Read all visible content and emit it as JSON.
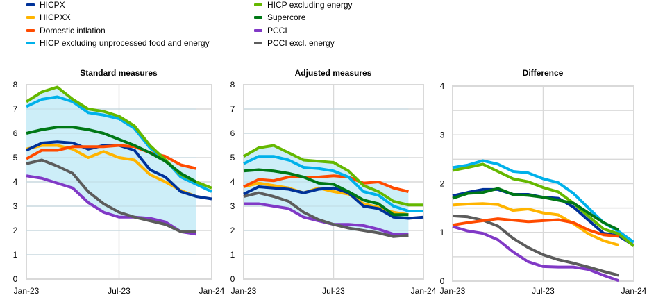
{
  "legend": {
    "left": [
      {
        "key": "hicpx",
        "label": "HICPX"
      },
      {
        "key": "hicpxx",
        "label": "HICPXX"
      },
      {
        "key": "domestic",
        "label": "Domestic inflation"
      },
      {
        "key": "excl_unproc",
        "label": "HICP excluding unprocessed food and energy"
      }
    ],
    "right": [
      {
        "key": "excl_energy",
        "label": "HICP excluding energy"
      },
      {
        "key": "supercore",
        "label": "Supercore"
      },
      {
        "key": "pcci",
        "label": "PCCI"
      },
      {
        "key": "pcci_excl_energy",
        "label": "PCCI excl. energy"
      }
    ]
  },
  "colors": {
    "hicpx": "#003299",
    "hicpxx": "#FFB400",
    "domestic": "#FF4B00",
    "excl_unproc": "#00B1EA",
    "excl_energy": "#65B800",
    "supercore": "#007816",
    "pcci": "#8139C6",
    "pcci_excl_energy": "#5C5C5C",
    "range_fill": "#CDEEF8",
    "grid": "#D9D9D9"
  },
  "chart_data": [
    {
      "type": "line",
      "title": "Standard measures",
      "xlabel": "",
      "ylabel": "",
      "x_ticks": [
        "Jan-23",
        "Jul-23",
        "Jan-24"
      ],
      "x": [
        "Jan-23",
        "Feb-23",
        "Mar-23",
        "Apr-23",
        "May-23",
        "Jun-23",
        "Jul-23",
        "Aug-23",
        "Sep-23",
        "Oct-23",
        "Nov-23",
        "Dec-23",
        "Jan-24"
      ],
      "ylim": [
        0,
        8
      ],
      "y_ticks": [
        0,
        1,
        2,
        3,
        4,
        5,
        6,
        7,
        8
      ],
      "grid": true,
      "shaded_range": "min-max across measures, Jan-23 to Dec-23",
      "series": [
        {
          "key": "excl_energy",
          "name": "HICP excluding energy",
          "values": [
            7.3,
            7.7,
            7.9,
            7.4,
            7.0,
            6.9,
            6.7,
            6.3,
            5.5,
            4.9,
            4.3,
            4.0,
            3.75
          ]
        },
        {
          "key": "excl_unproc",
          "name": "HICP excluding unprocessed food and energy",
          "values": [
            7.1,
            7.4,
            7.5,
            7.3,
            6.85,
            6.75,
            6.6,
            6.2,
            5.4,
            4.9,
            4.2,
            3.9,
            3.6
          ]
        },
        {
          "key": "supercore",
          "name": "Supercore",
          "values": [
            6.0,
            6.15,
            6.25,
            6.25,
            6.15,
            6.0,
            5.75,
            5.5,
            5.2,
            4.85,
            4.35,
            4.0
          ]
        },
        {
          "key": "hicpx",
          "name": "HICPX",
          "values": [
            5.3,
            5.6,
            5.65,
            5.6,
            5.35,
            5.5,
            5.5,
            5.3,
            4.5,
            4.2,
            3.6,
            3.4,
            3.3
          ]
        },
        {
          "key": "hicpxx",
          "name": "HICPXX",
          "values": [
            5.35,
            5.5,
            5.5,
            5.35,
            5.0,
            5.25,
            5.0,
            4.9,
            4.3,
            4.0,
            3.65,
            3.4
          ]
        },
        {
          "key": "domestic",
          "name": "Domestic inflation",
          "values": [
            4.95,
            5.3,
            5.3,
            5.45,
            5.45,
            5.45,
            5.5,
            5.45,
            5.2,
            5.05,
            4.7,
            4.55
          ]
        },
        {
          "key": "pcci_excl_energy",
          "name": "PCCI excl. energy",
          "values": [
            4.75,
            4.9,
            4.65,
            4.35,
            3.6,
            3.1,
            2.75,
            2.55,
            2.4,
            2.25,
            1.95,
            1.95
          ]
        },
        {
          "key": "pcci",
          "name": "PCCI",
          "values": [
            4.25,
            4.15,
            3.95,
            3.75,
            3.15,
            2.75,
            2.55,
            2.55,
            2.5,
            2.35,
            1.95,
            1.85
          ]
        }
      ]
    },
    {
      "type": "line",
      "title": "Adjusted measures",
      "xlabel": "",
      "ylabel": "",
      "x_ticks": [
        "Jan-23",
        "Jul-23",
        "Jan-24"
      ],
      "x": [
        "Jan-23",
        "Feb-23",
        "Mar-23",
        "Apr-23",
        "May-23",
        "Jun-23",
        "Jul-23",
        "Aug-23",
        "Sep-23",
        "Oct-23",
        "Nov-23",
        "Dec-23",
        "Jan-24"
      ],
      "ylim": [
        0,
        8
      ],
      "y_ticks": [
        0,
        1,
        2,
        3,
        4,
        5,
        6,
        7,
        8
      ],
      "grid": true,
      "shaded_range": "min-max across measures, Jan-23 to Dec-23",
      "series": [
        {
          "key": "excl_energy",
          "name": "HICP excluding energy",
          "values": [
            5.05,
            5.4,
            5.5,
            5.2,
            4.9,
            4.85,
            4.8,
            4.45,
            3.85,
            3.6,
            3.2,
            3.05,
            3.05
          ]
        },
        {
          "key": "excl_unproc",
          "name": "HICP excluding unprocessed food and energy",
          "values": [
            4.75,
            5.05,
            5.05,
            4.9,
            4.6,
            4.55,
            4.45,
            4.2,
            3.6,
            3.45,
            3.0,
            2.8,
            2.8
          ]
        },
        {
          "key": "supercore",
          "name": "Supercore",
          "values": [
            4.45,
            4.5,
            4.45,
            4.35,
            4.2,
            3.95,
            3.9,
            3.6,
            3.25,
            3.1,
            2.65,
            2.65
          ]
        },
        {
          "key": "hicpx",
          "name": "HICPX",
          "values": [
            3.5,
            3.8,
            3.75,
            3.7,
            3.55,
            3.7,
            3.75,
            3.55,
            3.0,
            2.9,
            2.55,
            2.5,
            2.55
          ]
        },
        {
          "key": "hicpxx",
          "name": "HICPXX",
          "values": [
            3.8,
            3.95,
            3.85,
            3.75,
            3.55,
            3.75,
            3.6,
            3.5,
            3.1,
            2.95,
            2.75,
            2.65
          ]
        },
        {
          "key": "domestic",
          "name": "Domestic inflation",
          "values": [
            3.8,
            4.1,
            4.05,
            4.2,
            4.2,
            4.2,
            4.25,
            4.2,
            3.95,
            4.0,
            3.75,
            3.6
          ]
        },
        {
          "key": "pcci_excl_energy",
          "name": "PCCI excl. energy",
          "values": [
            3.4,
            3.55,
            3.4,
            3.2,
            2.75,
            2.45,
            2.25,
            2.1,
            2.0,
            1.9,
            1.75,
            1.8
          ]
        },
        {
          "key": "pcci",
          "name": "PCCI",
          "values": [
            3.1,
            3.1,
            3.0,
            2.9,
            2.55,
            2.4,
            2.25,
            2.25,
            2.2,
            2.05,
            1.85,
            1.85
          ]
        }
      ]
    },
    {
      "type": "line",
      "title": "Difference",
      "xlabel": "",
      "ylabel": "",
      "x_ticks": [
        "Jan-23",
        "Jul-23",
        "Jan-24"
      ],
      "x": [
        "Jan-23",
        "Feb-23",
        "Mar-23",
        "Apr-23",
        "May-23",
        "Jun-23",
        "Jul-23",
        "Aug-23",
        "Sep-23",
        "Oct-23",
        "Nov-23",
        "Dec-23",
        "Jan-24"
      ],
      "ylim": [
        0,
        4
      ],
      "y_ticks": [
        0,
        1,
        2,
        3,
        4
      ],
      "grid": true,
      "series": [
        {
          "key": "excl_unproc",
          "name": "HICP excluding unprocessed food and energy",
          "values": [
            2.33,
            2.38,
            2.47,
            2.4,
            2.25,
            2.22,
            2.1,
            2.02,
            1.8,
            1.5,
            1.2,
            1.02,
            0.8
          ]
        },
        {
          "key": "excl_energy",
          "name": "HICP excluding energy",
          "values": [
            2.27,
            2.33,
            2.4,
            2.25,
            2.1,
            2.04,
            1.92,
            1.83,
            1.6,
            1.33,
            1.07,
            0.97,
            0.72
          ]
        },
        {
          "key": "hicpx",
          "name": "HICPX",
          "values": [
            1.75,
            1.82,
            1.88,
            1.88,
            1.78,
            1.78,
            1.72,
            1.7,
            1.52,
            1.25,
            0.98,
            0.93,
            0.73
          ]
        },
        {
          "key": "supercore",
          "name": "Supercore",
          "values": [
            1.7,
            1.8,
            1.82,
            1.9,
            1.78,
            1.76,
            1.72,
            1.66,
            1.6,
            1.4,
            1.2,
            1.05
          ]
        },
        {
          "key": "hicpxx",
          "name": "HICPXX",
          "values": [
            1.56,
            1.58,
            1.59,
            1.57,
            1.45,
            1.48,
            1.4,
            1.36,
            1.18,
            0.97,
            0.83,
            0.74
          ]
        },
        {
          "key": "domestic",
          "name": "Domestic inflation",
          "values": [
            1.15,
            1.2,
            1.24,
            1.28,
            1.25,
            1.22,
            1.24,
            1.26,
            1.2,
            1.05,
            0.95,
            0.92
          ]
        },
        {
          "key": "pcci_excl_energy",
          "name": "PCCI excl. energy",
          "values": [
            1.34,
            1.32,
            1.25,
            1.13,
            0.88,
            0.69,
            0.54,
            0.44,
            0.37,
            0.29,
            0.2,
            0.12
          ]
        },
        {
          "key": "pcci",
          "name": "PCCI",
          "values": [
            1.12,
            1.03,
            0.98,
            0.85,
            0.6,
            0.4,
            0.3,
            0.29,
            0.29,
            0.24,
            0.12,
            0.01
          ]
        }
      ]
    }
  ]
}
